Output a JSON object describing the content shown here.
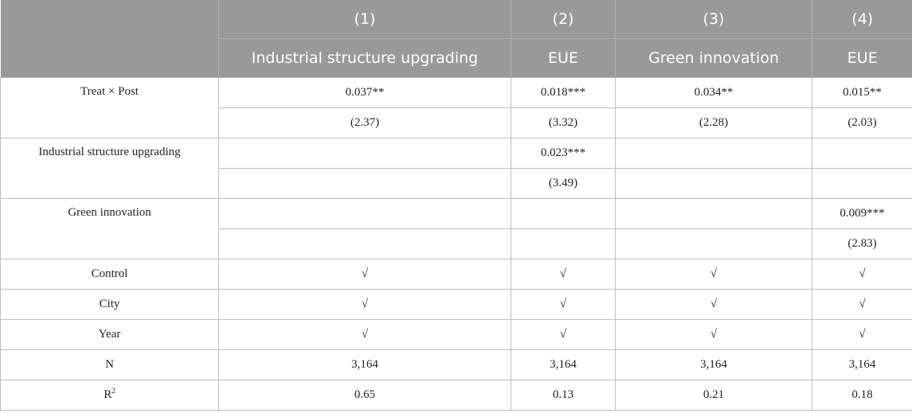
{
  "header": {
    "numbers": [
      "(1)",
      "(2)",
      "(3)",
      "(4)"
    ],
    "names": [
      "Industrial structure upgrading",
      "EUE",
      "Green innovation",
      "EUE"
    ]
  },
  "rows": {
    "treat_post": {
      "label": "Treat × Post",
      "coef": [
        "0.037**",
        "0.018***",
        "0.034**",
        "0.015**"
      ],
      "t": [
        "(2.37)",
        "(3.32)",
        "(2.28)",
        "(2.03)"
      ]
    },
    "isu": {
      "label": "Industrial structure upgrading",
      "coef": [
        "",
        "0.023***",
        "",
        ""
      ],
      "t": [
        "",
        "(3.49)",
        "",
        ""
      ]
    },
    "gi": {
      "label": "Green innovation",
      "coef": [
        "",
        "",
        "",
        "0.009***"
      ],
      "t": [
        "",
        "",
        "",
        "(2.83)"
      ]
    },
    "control": {
      "label": "Control",
      "values": [
        "√",
        "√",
        "√",
        "√"
      ]
    },
    "city": {
      "label": "City",
      "values": [
        "√",
        "√",
        "√",
        "√"
      ]
    },
    "year": {
      "label": "Year",
      "values": [
        "√",
        "√",
        "√",
        "√"
      ]
    },
    "n": {
      "label": "N",
      "values": [
        "3,164",
        "3,164",
        "3,164",
        "3,164"
      ]
    },
    "r2": {
      "label": "R",
      "label_sup": "2",
      "values": [
        "0.65",
        "0.13",
        "0.21",
        "0.18"
      ]
    }
  }
}
